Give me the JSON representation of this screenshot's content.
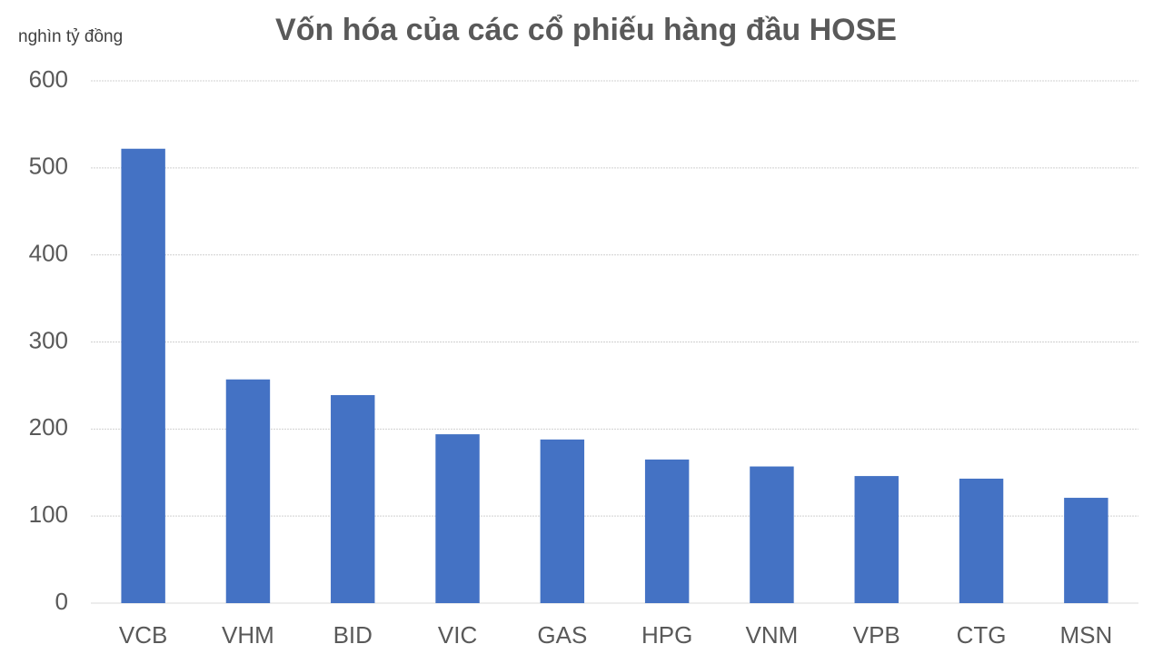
{
  "chart_data": {
    "type": "bar",
    "title": "Vốn hóa của các cổ phiếu hàng đầu HOSE",
    "y_label": "nghìn tỷ đồng",
    "categories": [
      "VCB",
      "VHM",
      "BID",
      "VIC",
      "GAS",
      "HPG",
      "VNM",
      "VPB",
      "CTG",
      "MSN"
    ],
    "values": [
      522,
      257,
      239,
      194,
      188,
      165,
      157,
      146,
      143,
      121
    ],
    "color": "#4472c4",
    "ylim": [
      0,
      600
    ],
    "yticks": [
      0,
      100,
      200,
      300,
      400,
      500,
      600
    ],
    "grid": true
  }
}
